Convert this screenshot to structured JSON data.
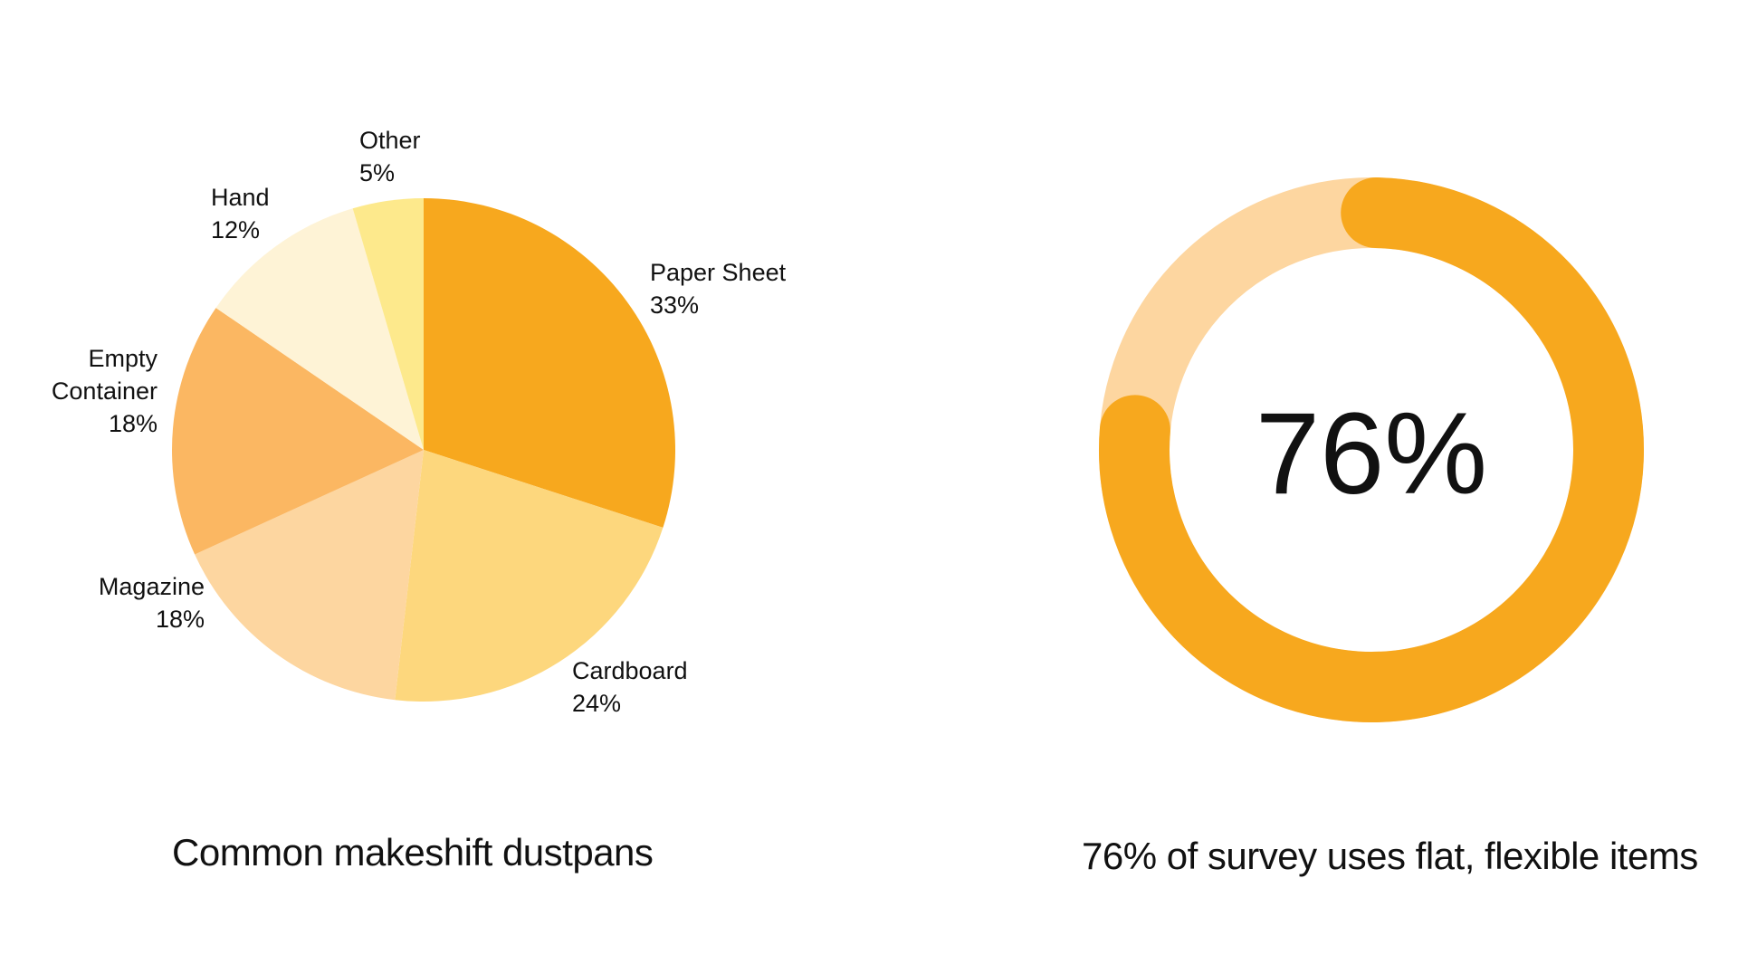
{
  "chart_data": [
    {
      "type": "pie",
      "title": "Common makeshift dustpans",
      "slices": [
        {
          "label": "Paper Sheet",
          "value": 33,
          "value_label": "33%",
          "color": "#F7A81E"
        },
        {
          "label": "Cardboard",
          "value": 24,
          "value_label": "24%",
          "color": "#FDD77D"
        },
        {
          "label": "Magazine",
          "value": 18,
          "value_label": "18%",
          "color": "#FDD6A0"
        },
        {
          "label": "Empty Container",
          "value": 18,
          "value_label": "18%",
          "color": "#FBB762"
        },
        {
          "label": "Hand",
          "value": 12,
          "value_label": "12%",
          "color": "#FEF3D6"
        },
        {
          "label": "Other",
          "value": 5,
          "value_label": "5%",
          "color": "#FDE98C"
        }
      ]
    },
    {
      "type": "donut",
      "title": "76% of survey uses flat, flexible items",
      "value": 76,
      "center_label": "76%",
      "fill_color": "#F7A81E",
      "track_color": "#FDD6A0"
    }
  ]
}
